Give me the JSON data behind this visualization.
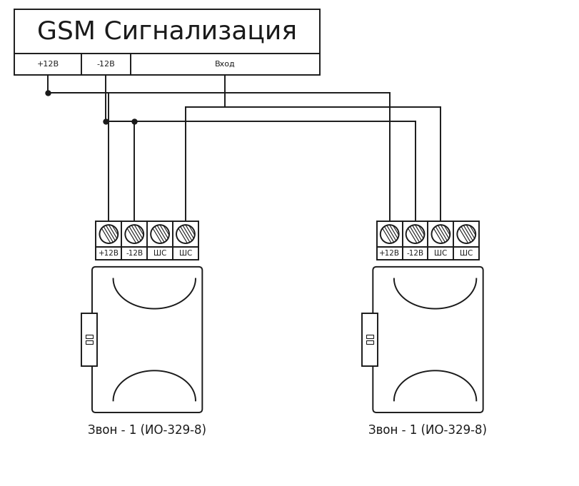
{
  "title": "GSM Сигнализация",
  "bg_color": "#ffffff",
  "line_color": "#1a1a1a",
  "title_fontsize": 26,
  "device_label": "Звон - 1 (ИО-329-8)",
  "terminal_labels": [
    "+12В",
    "-12В",
    "ШС",
    "ШС"
  ],
  "gsm_terminals": [
    "+12В",
    "-12В",
    "Вход"
  ],
  "lw": 1.4
}
